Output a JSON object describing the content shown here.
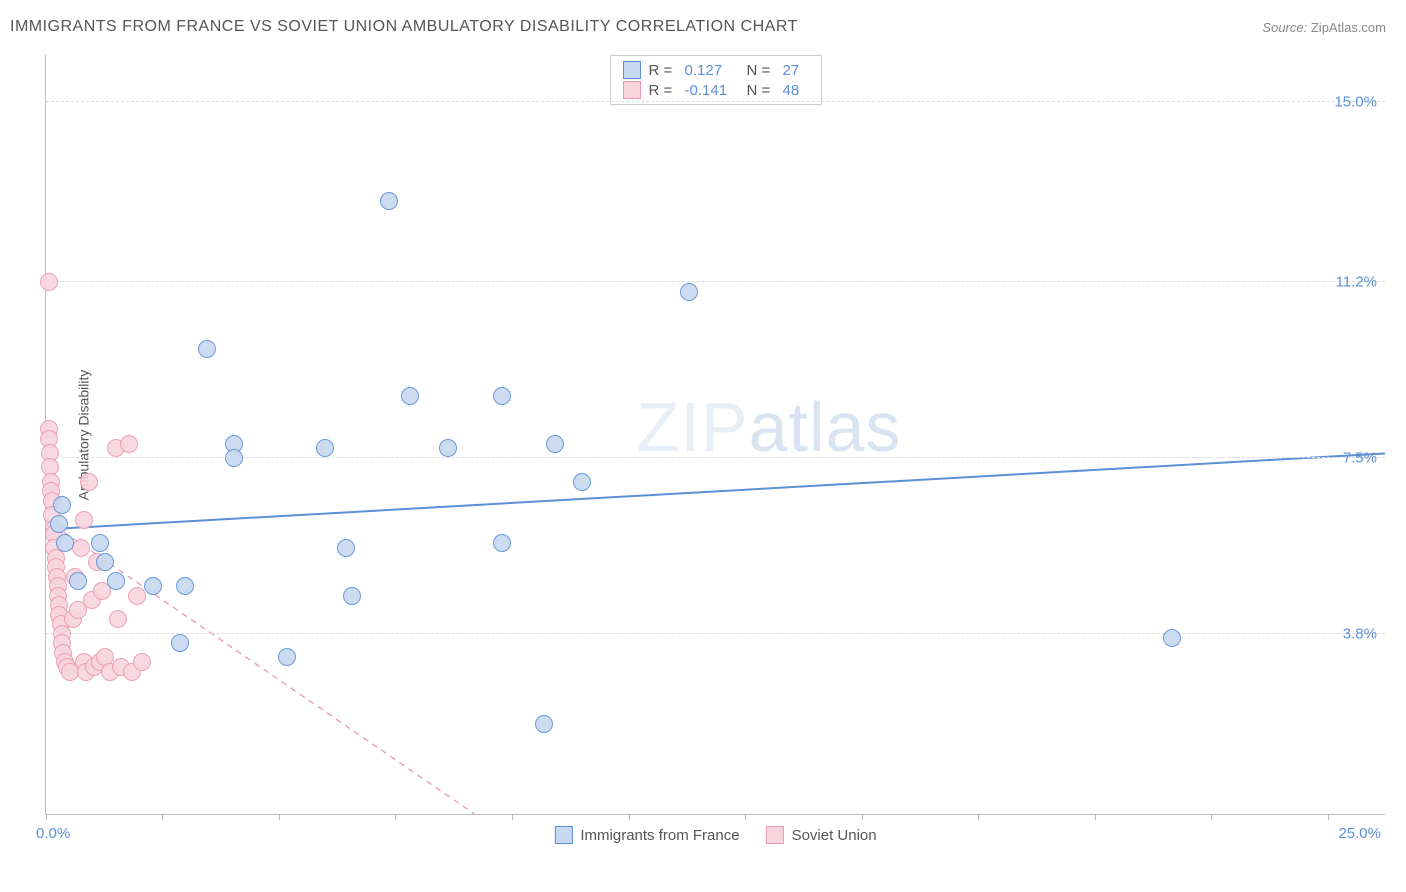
{
  "title": "IMMIGRANTS FROM FRANCE VS SOVIET UNION AMBULATORY DISABILITY CORRELATION CHART",
  "source_label": "Source:",
  "source_value": "ZipAtlas.com",
  "watermark_a": "ZIP",
  "watermark_b": "atlas",
  "chart": {
    "type": "scatter",
    "background_color": "#ffffff",
    "grid_color": "#dddddd",
    "axis_color": "#bbbbbb",
    "ylabel": "Ambulatory Disability",
    "label_fontsize": 14,
    "tick_fontsize": 15,
    "tick_color": "#5b8fd6",
    "xlim": [
      0.0,
      25.0
    ],
    "ylim": [
      0.0,
      16.0
    ],
    "xtick_positions": [
      0.0,
      2.17,
      4.35,
      6.52,
      8.7,
      10.87,
      13.04,
      15.22,
      17.39,
      19.57,
      21.74,
      23.91
    ],
    "xlabel_min": "0.0%",
    "xlabel_max": "25.0%",
    "yticks": [
      {
        "value": 3.8,
        "label": "3.8%"
      },
      {
        "value": 7.5,
        "label": "7.5%"
      },
      {
        "value": 11.2,
        "label": "11.2%"
      },
      {
        "value": 15.0,
        "label": "15.0%"
      }
    ],
    "marker_radius": 9,
    "marker_border_width": 1,
    "marker_fill_opacity": 0.35,
    "series": [
      {
        "id": "france",
        "label": "Immigrants from France",
        "color": "#5b8fd6",
        "fill": "#c6d9f0",
        "R": "0.127",
        "N": "27",
        "trend": {
          "x1": 0.0,
          "y1": 6.0,
          "x2": 25.0,
          "y2": 7.6,
          "dash": "none",
          "width": 2
        },
        "points": [
          [
            0.3,
            6.5
          ],
          [
            0.25,
            6.1
          ],
          [
            0.35,
            5.7
          ],
          [
            0.6,
            4.9
          ],
          [
            1.0,
            5.7
          ],
          [
            1.1,
            5.3
          ],
          [
            1.3,
            4.9
          ],
          [
            2.0,
            4.8
          ],
          [
            2.5,
            3.6
          ],
          [
            2.6,
            4.8
          ],
          [
            3.0,
            9.8
          ],
          [
            3.5,
            7.8
          ],
          [
            3.5,
            7.5
          ],
          [
            4.5,
            3.3
          ],
          [
            5.2,
            7.7
          ],
          [
            5.6,
            5.6
          ],
          [
            5.7,
            4.6
          ],
          [
            6.4,
            12.9
          ],
          [
            6.8,
            8.8
          ],
          [
            7.5,
            7.7
          ],
          [
            8.5,
            8.8
          ],
          [
            8.5,
            5.7
          ],
          [
            9.3,
            1.9
          ],
          [
            9.5,
            7.8
          ],
          [
            10.0,
            7.0
          ],
          [
            12.0,
            11.0
          ],
          [
            21.0,
            3.7
          ]
        ]
      },
      {
        "id": "soviet",
        "label": "Soviet Union",
        "color": "#e99ab0",
        "fill": "#f8d4de",
        "R": "-0.141",
        "N": "48",
        "trend": {
          "x1": 0.0,
          "y1": 6.2,
          "x2": 8.0,
          "y2": 0.0,
          "dash": "6,5",
          "width": 1.3
        },
        "points": [
          [
            0.05,
            11.2
          ],
          [
            0.05,
            8.1
          ],
          [
            0.05,
            7.9
          ],
          [
            0.08,
            7.6
          ],
          [
            0.08,
            7.3
          ],
          [
            0.1,
            7.0
          ],
          [
            0.1,
            6.8
          ],
          [
            0.12,
            6.6
          ],
          [
            0.12,
            6.3
          ],
          [
            0.14,
            6.0
          ],
          [
            0.15,
            5.9
          ],
          [
            0.15,
            5.6
          ],
          [
            0.18,
            5.4
          ],
          [
            0.18,
            5.2
          ],
          [
            0.2,
            5.0
          ],
          [
            0.22,
            4.8
          ],
          [
            0.22,
            4.6
          ],
          [
            0.25,
            4.4
          ],
          [
            0.25,
            4.2
          ],
          [
            0.28,
            4.0
          ],
          [
            0.3,
            3.8
          ],
          [
            0.3,
            3.6
          ],
          [
            0.32,
            3.4
          ],
          [
            0.35,
            3.2
          ],
          [
            0.4,
            3.1
          ],
          [
            0.45,
            3.0
          ],
          [
            0.5,
            4.1
          ],
          [
            0.55,
            5.0
          ],
          [
            0.6,
            4.3
          ],
          [
            0.65,
            5.6
          ],
          [
            0.7,
            6.2
          ],
          [
            0.7,
            3.2
          ],
          [
            0.75,
            3.0
          ],
          [
            0.8,
            7.0
          ],
          [
            0.85,
            4.5
          ],
          [
            0.9,
            3.1
          ],
          [
            0.95,
            5.3
          ],
          [
            1.0,
            3.2
          ],
          [
            1.05,
            4.7
          ],
          [
            1.1,
            3.3
          ],
          [
            1.2,
            3.0
          ],
          [
            1.3,
            7.7
          ],
          [
            1.35,
            4.1
          ],
          [
            1.4,
            3.1
          ],
          [
            1.55,
            7.8
          ],
          [
            1.6,
            3.0
          ],
          [
            1.7,
            4.6
          ],
          [
            1.8,
            3.2
          ]
        ]
      }
    ],
    "bottom_legend": [
      {
        "series": 0
      },
      {
        "series": 1
      }
    ]
  }
}
